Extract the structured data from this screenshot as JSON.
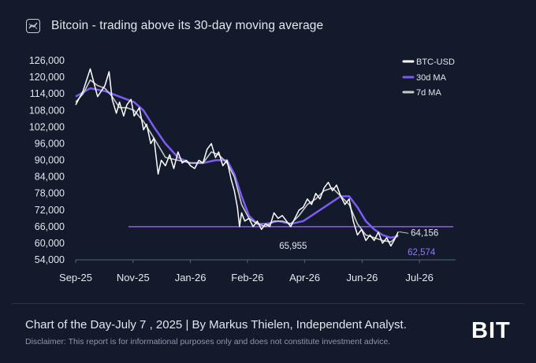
{
  "title": "Bitcoin - trading above its 30-day moving average",
  "caption": "Chart of the Day-July 7 , 2025  |  By Markus Thielen, Independent Analyst.",
  "disclaimer": "Disclaimer: This report is for informational purposes only and does not constitute investment advice.",
  "brand": "BIT",
  "icons": {
    "header": "trend-chart-icon"
  },
  "colors": {
    "background": "#131a2b",
    "btc": "#ffffff",
    "ma30": "#7b5cf0",
    "ma7": "#c9c9c9",
    "reference_line": "#8a5cf6"
  },
  "chart_data": {
    "type": "line",
    "x_ticks": [
      "Sep-25",
      "Nov-25",
      "Jan-26",
      "Feb-26",
      "Apr-26",
      "Jun-26",
      "Jul-26"
    ],
    "y_ticks": [
      "126,000",
      "120,000",
      "114,000",
      "108,000",
      "102,000",
      "96,000",
      "90,000",
      "84,000",
      "78,000",
      "72,000",
      "66,000",
      "60,000",
      "54,000"
    ],
    "ylim": [
      54000,
      126000
    ],
    "grid": false,
    "legend_position": "top-right",
    "series": [
      {
        "name": "BTC-USD",
        "x": [
          "2025-09-01",
          "2025-09-08",
          "2025-09-15",
          "2025-09-22",
          "2025-09-29",
          "2025-10-03",
          "2025-10-06",
          "2025-10-10",
          "2025-10-13",
          "2025-10-17",
          "2025-10-20",
          "2025-10-24",
          "2025-10-27",
          "2025-11-01",
          "2025-11-05",
          "2025-11-08",
          "2025-11-12",
          "2025-11-15",
          "2025-11-19",
          "2025-11-22",
          "2025-11-26",
          "2025-11-30",
          "2025-12-04",
          "2025-12-08",
          "2025-12-12",
          "2025-12-16",
          "2025-12-20",
          "2025-12-24",
          "2025-12-28",
          "2026-01-01",
          "2026-01-05",
          "2026-01-09",
          "2026-01-13",
          "2026-01-16",
          "2026-01-20",
          "2026-01-24",
          "2026-01-28",
          "2026-01-31",
          "2026-02-03",
          "2026-02-05",
          "2026-02-07",
          "2026-02-10",
          "2026-02-14",
          "2026-02-18",
          "2026-02-22",
          "2026-02-26",
          "2026-03-02",
          "2026-03-06",
          "2026-03-10",
          "2026-03-14",
          "2026-03-18",
          "2026-03-22",
          "2026-03-26",
          "2026-03-30",
          "2026-04-03",
          "2026-04-07",
          "2026-04-11",
          "2026-04-15",
          "2026-04-19",
          "2026-04-23",
          "2026-04-27",
          "2026-05-01",
          "2026-05-05",
          "2026-05-09",
          "2026-05-13",
          "2026-05-17",
          "2026-05-21",
          "2026-05-25",
          "2026-05-29",
          "2026-06-02",
          "2026-06-06",
          "2026-06-10",
          "2026-06-14",
          "2026-06-18",
          "2026-06-22",
          "2026-06-26",
          "2026-06-30",
          "2026-07-03",
          "2026-07-07"
        ],
        "values": [
          110000,
          115000,
          123000,
          113000,
          117000,
          122000,
          112000,
          107000,
          111000,
          106000,
          110000,
          112000,
          106000,
          109000,
          101000,
          103000,
          96000,
          98000,
          85000,
          90000,
          88000,
          92000,
          87000,
          93000,
          89000,
          90000,
          88000,
          87000,
          90000,
          89000,
          94000,
          96000,
          91000,
          93000,
          88000,
          90000,
          83000,
          79000,
          73000,
          66000,
          71000,
          68000,
          69000,
          66000,
          68000,
          65000,
          67000,
          66000,
          71000,
          69000,
          70000,
          68000,
          66000,
          69000,
          72000,
          73000,
          76000,
          74000,
          78000,
          76000,
          80000,
          82000,
          79000,
          81000,
          77000,
          74000,
          76000,
          68000,
          63000,
          65000,
          61000,
          63000,
          61000,
          64000,
          60000,
          62000,
          59000,
          61000,
          64156
        ]
      },
      {
        "name": "30d MA",
        "x": [
          "2025-09-01",
          "2025-09-15",
          "2025-09-29",
          "2025-10-13",
          "2025-10-27",
          "2025-11-05",
          "2025-11-15",
          "2025-11-26",
          "2025-12-08",
          "2025-12-20",
          "2026-01-01",
          "2026-01-13",
          "2026-01-24",
          "2026-01-31",
          "2026-02-07",
          "2026-02-14",
          "2026-02-22",
          "2026-03-02",
          "2026-03-14",
          "2026-03-26",
          "2026-04-07",
          "2026-04-19",
          "2026-05-01",
          "2026-05-13",
          "2026-05-21",
          "2026-05-29",
          "2026-06-06",
          "2026-06-14",
          "2026-06-22",
          "2026-06-30",
          "2026-07-07"
        ],
        "values": [
          113000,
          116000,
          115000,
          113000,
          111000,
          108000,
          102000,
          96000,
          91000,
          89000,
          89000,
          90000,
          90000,
          85000,
          77000,
          70000,
          67000,
          67000,
          68000,
          67000,
          68000,
          71000,
          74000,
          77000,
          77000,
          73000,
          68000,
          65000,
          63000,
          62000,
          62574
        ]
      },
      {
        "name": "7d MA",
        "x": [
          "2025-09-01",
          "2025-09-08",
          "2025-09-15",
          "2025-09-22",
          "2025-09-29",
          "2025-10-06",
          "2025-10-13",
          "2025-10-20",
          "2025-10-27",
          "2025-11-05",
          "2025-11-15",
          "2025-11-26",
          "2025-12-08",
          "2025-12-20",
          "2026-01-01",
          "2026-01-09",
          "2026-01-16",
          "2026-01-24",
          "2026-01-31",
          "2026-02-07",
          "2026-02-14",
          "2026-02-22",
          "2026-03-02",
          "2026-03-10",
          "2026-03-18",
          "2026-03-26",
          "2026-04-03",
          "2026-04-11",
          "2026-04-19",
          "2026-04-27",
          "2026-05-05",
          "2026-05-13",
          "2026-05-21",
          "2026-05-29",
          "2026-06-06",
          "2026-06-14",
          "2026-06-22",
          "2026-06-30",
          "2026-07-07"
        ],
        "values": [
          111000,
          114000,
          119000,
          117000,
          116000,
          113000,
          109000,
          109000,
          108000,
          104000,
          98000,
          91000,
          90000,
          89000,
          89000,
          93000,
          92000,
          89000,
          84000,
          74000,
          69000,
          67000,
          66000,
          68000,
          68000,
          67000,
          70000,
          74000,
          76000,
          79000,
          80000,
          77000,
          74000,
          67000,
          63000,
          62000,
          61000,
          60500,
          63000
        ]
      }
    ],
    "reference_line": {
      "y": 66000
    },
    "annotations": [
      {
        "text": "65,955",
        "x": "2026-03-12",
        "y": 65955
      },
      {
        "text": "64,156",
        "x": "2026-07-07",
        "y": 64156
      },
      {
        "text": "62,574",
        "x": "2026-07-07",
        "y": 62574
      }
    ]
  }
}
